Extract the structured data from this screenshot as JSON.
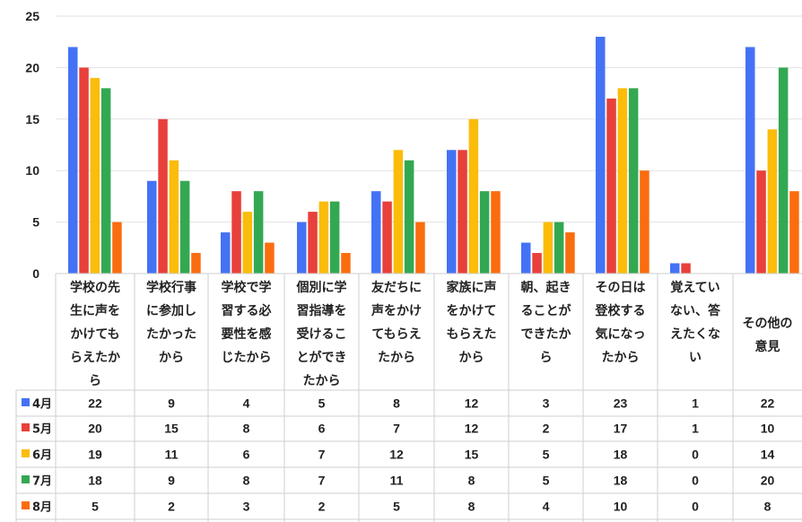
{
  "chart_data": {
    "type": "bar",
    "categories": [
      [
        "学校の先",
        "生に声を",
        "かけても",
        "らえたか",
        "ら"
      ],
      [
        "学校行事",
        "に参加し",
        "たかった",
        "から"
      ],
      [
        "学校で学",
        "習する必",
        "要性を感",
        "じたから"
      ],
      [
        "個別に学",
        "習指導を",
        "受けるこ",
        "とができ",
        "たから"
      ],
      [
        "友だちに",
        "声をかけ",
        "てもらえ",
        "たから"
      ],
      [
        "家族に声",
        "をかけて",
        "もらえた",
        "から"
      ],
      [
        "朝、起き",
        "ることが",
        "できたか",
        "ら"
      ],
      [
        "その日は",
        "登校する",
        "気になっ",
        "たから"
      ],
      [
        "覚えてい",
        "ない、答",
        "えたくな",
        "い"
      ],
      [
        "その他の",
        "意見"
      ]
    ],
    "series": [
      {
        "name": "4月",
        "color": "#4472f5",
        "values": [
          22,
          9,
          4,
          5,
          8,
          12,
          3,
          23,
          1,
          22
        ]
      },
      {
        "name": "5月",
        "color": "#e8403a",
        "values": [
          20,
          15,
          8,
          6,
          7,
          12,
          2,
          17,
          1,
          10
        ]
      },
      {
        "name": "6月",
        "color": "#fbbc0a",
        "values": [
          19,
          11,
          6,
          7,
          12,
          15,
          5,
          18,
          0,
          14
        ]
      },
      {
        "name": "7月",
        "color": "#33a852",
        "values": [
          18,
          9,
          8,
          7,
          11,
          8,
          5,
          18,
          0,
          20
        ]
      },
      {
        "name": "8月",
        "color": "#fa6d0f",
        "values": [
          5,
          2,
          3,
          2,
          5,
          8,
          4,
          10,
          0,
          8
        ]
      }
    ],
    "yticks": [
      0,
      5,
      10,
      15,
      20,
      25
    ],
    "ylim": [
      0,
      25
    ],
    "grid": true,
    "legend": "data-table rows below chart"
  }
}
